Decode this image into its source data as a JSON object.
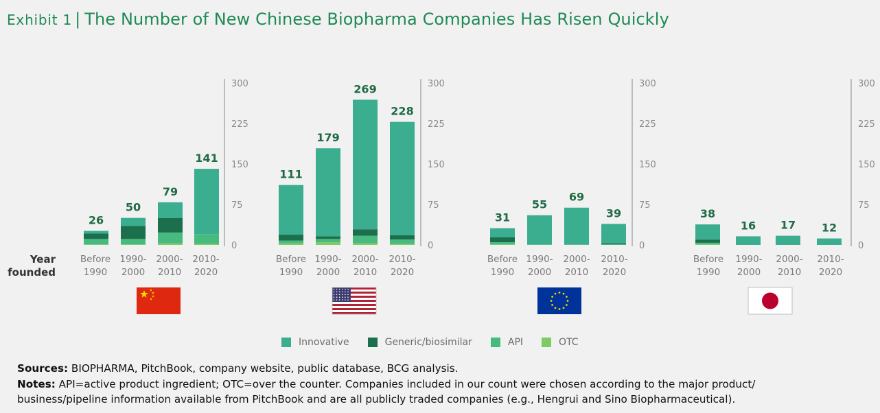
{
  "header": {
    "exhibit": "Exhibit 1",
    "separator": "|",
    "title": "The Number of New Chinese Biopharma Companies Has Risen Quickly"
  },
  "colors": {
    "Innovative": "#3aae8f",
    "Generic/biosimilar": "#1c6f4d",
    "API": "#47bb7f",
    "OTC": "#7ecb62",
    "axis": "#9a9a9a",
    "total_label": "#1f6b45"
  },
  "year_label": [
    "Year",
    "founded"
  ],
  "chart_data": [
    {
      "type": "bar",
      "country": "China",
      "flag": "flag-china",
      "categories": [
        [
          "Before",
          "1990"
        ],
        [
          "1990-",
          "2000"
        ],
        [
          "2000-",
          "2010"
        ],
        [
          "2010-",
          "2020"
        ]
      ],
      "ylim": [
        0,
        300
      ],
      "yticks": [
        0,
        75,
        150,
        225,
        300
      ],
      "totals": [
        26,
        50,
        79,
        141
      ],
      "series": [
        {
          "name": "OTC",
          "values": [
            1,
            1,
            3,
            2
          ]
        },
        {
          "name": "API",
          "values": [
            10,
            10,
            20,
            18
          ]
        },
        {
          "name": "Generic/biosimilar",
          "values": [
            10,
            24,
            27,
            0
          ]
        },
        {
          "name": "Innovative",
          "values": [
            5,
            15,
            29,
            121
          ]
        }
      ]
    },
    {
      "type": "bar",
      "country": "United States",
      "flag": "flag-usa",
      "categories": [
        [
          "Before",
          "1990"
        ],
        [
          "1990-",
          "2000"
        ],
        [
          "2000-",
          "2010"
        ],
        [
          "2010-",
          "2020"
        ]
      ],
      "ylim": [
        0,
        300
      ],
      "yticks": [
        0,
        75,
        150,
        225,
        300
      ],
      "totals": [
        111,
        179,
        269,
        228
      ],
      "series": [
        {
          "name": "OTC",
          "values": [
            3,
            5,
            3,
            2
          ]
        },
        {
          "name": "API",
          "values": [
            5,
            6,
            14,
            8
          ]
        },
        {
          "name": "Generic/biosimilar",
          "values": [
            11,
            5,
            12,
            8
          ]
        },
        {
          "name": "Innovative",
          "values": [
            92,
            163,
            240,
            210
          ]
        }
      ]
    },
    {
      "type": "bar",
      "country": "European Union",
      "flag": "flag-eu",
      "categories": [
        [
          "Before",
          "1990"
        ],
        [
          "1990-",
          "2000"
        ],
        [
          "2000-",
          "2010"
        ],
        [
          "2010-",
          "2020"
        ]
      ],
      "ylim": [
        0,
        300
      ],
      "yticks": [
        0,
        75,
        150,
        225,
        300
      ],
      "totals": [
        31,
        55,
        69,
        39
      ],
      "series": [
        {
          "name": "OTC",
          "values": [
            1,
            0,
            0,
            0
          ]
        },
        {
          "name": "API",
          "values": [
            4,
            1,
            1,
            1
          ]
        },
        {
          "name": "Generic/biosimilar",
          "values": [
            9,
            0,
            0,
            2
          ]
        },
        {
          "name": "Innovative",
          "values": [
            17,
            54,
            68,
            36
          ]
        }
      ]
    },
    {
      "type": "bar",
      "country": "Japan",
      "flag": "flag-japan",
      "categories": [
        [
          "Before",
          "1990"
        ],
        [
          "1990-",
          "2000"
        ],
        [
          "2000-",
          "2010"
        ],
        [
          "2010-",
          "2020"
        ]
      ],
      "ylim": [
        0,
        300
      ],
      "yticks": [
        0,
        75,
        150,
        225,
        300
      ],
      "totals": [
        38,
        16,
        17,
        12
      ],
      "series": [
        {
          "name": "OTC",
          "values": [
            1,
            0,
            0,
            0
          ]
        },
        {
          "name": "API",
          "values": [
            3,
            0,
            0,
            0
          ]
        },
        {
          "name": "Generic/biosimilar",
          "values": [
            6,
            0,
            0,
            0
          ]
        },
        {
          "name": "Innovative",
          "values": [
            28,
            16,
            17,
            12
          ]
        }
      ]
    }
  ],
  "legend": [
    "Innovative",
    "Generic/biosimilar",
    "API",
    "OTC"
  ],
  "footer": {
    "sources_label": "Sources:",
    "sources_text": " BIOPHARMA, PitchBook, company website, public database, BCG analysis.",
    "notes_label": "Notes:",
    "notes_line1": " API=active product ingredient; OTC=over the counter. Companies included in our count were chosen according to the major product/",
    "notes_line2": "business/pipeline information available from PitchBook and are all publicly traded companies (e.g., Hengrui and Sino Biopharmaceutical)."
  }
}
